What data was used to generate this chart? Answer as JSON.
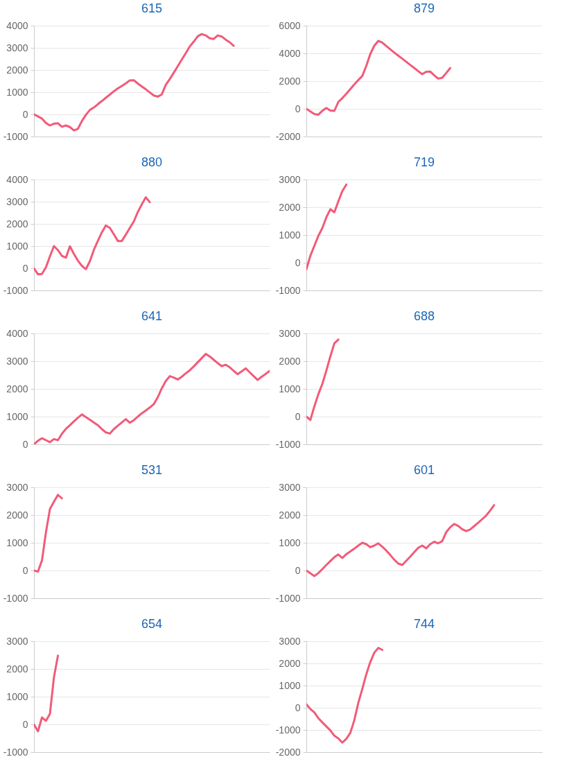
{
  "chart_data": [
    {
      "type": "line",
      "title": "615",
      "color": "#f25a78",
      "grid": "y",
      "tick_labels": "y",
      "ylim": [
        -1000,
        4000
      ],
      "yticks": [
        -1000,
        0,
        1000,
        2000,
        3000,
        4000
      ],
      "categories": [
        null,
        null,
        null,
        null,
        null,
        null,
        null,
        null,
        null,
        null,
        null,
        null,
        null,
        null,
        null,
        null,
        null,
        null,
        null,
        null,
        null,
        null,
        null,
        null,
        null,
        null,
        null,
        null,
        null,
        null,
        null,
        null,
        null,
        null,
        null,
        null,
        null,
        null,
        null,
        null,
        null,
        null,
        null,
        null,
        null,
        null,
        null,
        null,
        null,
        null,
        null,
        null,
        null,
        null,
        null,
        null,
        null,
        null,
        null,
        null
      ],
      "values": [
        0,
        -90,
        -190,
        -390,
        -500,
        -420,
        -400,
        -560,
        -500,
        -570,
        -720,
        -650,
        -300,
        -20,
        200,
        310,
        460,
        600,
        750,
        890,
        1040,
        1170,
        1280,
        1400,
        1530,
        1540,
        1390,
        1260,
        1130,
        990,
        850,
        800,
        900,
        1330,
        1590,
        1880,
        2170,
        2470,
        2760,
        3060,
        3280,
        3520,
        3620,
        3560,
        3430,
        3400,
        3560,
        3510,
        3370,
        3250,
        3090,
        null,
        null,
        null,
        null,
        null,
        null,
        null,
        null,
        null
      ]
    },
    {
      "type": "line",
      "title": "879",
      "color": "#f25a78",
      "grid": "y",
      "tick_labels": "y",
      "ylim": [
        -2000,
        6000
      ],
      "yticks": [
        -2000,
        0,
        2000,
        4000,
        6000
      ],
      "categories": [
        null,
        null,
        null,
        null,
        null,
        null,
        null,
        null,
        null,
        null,
        null,
        null,
        null,
        null,
        null,
        null,
        null,
        null,
        null,
        null,
        null,
        null,
        null,
        null,
        null,
        null,
        null,
        null,
        null,
        null,
        null,
        null,
        null,
        null,
        null,
        null,
        null,
        null,
        null,
        null,
        null,
        null,
        null,
        null,
        null,
        null,
        null,
        null,
        null,
        null,
        null,
        null,
        null,
        null,
        null,
        null,
        null,
        null,
        null,
        null
      ],
      "values": [
        0,
        -190,
        -380,
        -420,
        -140,
        60,
        -130,
        -150,
        500,
        770,
        1090,
        1420,
        1760,
        2080,
        2370,
        3100,
        3950,
        4550,
        4900,
        4780,
        4530,
        4290,
        4060,
        3840,
        3620,
        3390,
        3170,
        2950,
        2720,
        2500,
        2680,
        2690,
        2420,
        2180,
        2240,
        2580,
        2940,
        null,
        null,
        null,
        null,
        null,
        null,
        null,
        null,
        null,
        null,
        null,
        null,
        null,
        null,
        null,
        null,
        null,
        null,
        null,
        null,
        null,
        null,
        null
      ]
    },
    {
      "type": "line",
      "title": "880",
      "color": "#f25a78",
      "grid": "y",
      "tick_labels": "y",
      "ylim": [
        -1000,
        4000
      ],
      "yticks": [
        -1000,
        0,
        1000,
        2000,
        3000,
        4000
      ],
      "categories": [
        null,
        null,
        null,
        null,
        null,
        null,
        null,
        null,
        null,
        null,
        null,
        null,
        null,
        null,
        null,
        null,
        null,
        null,
        null,
        null,
        null,
        null,
        null,
        null,
        null,
        null,
        null,
        null,
        null,
        null,
        null,
        null,
        null,
        null,
        null,
        null,
        null,
        null,
        null,
        null,
        null,
        null,
        null,
        null,
        null,
        null,
        null,
        null,
        null,
        null,
        null,
        null,
        null,
        null,
        null,
        null,
        null,
        null,
        null,
        null
      ],
      "values": [
        0,
        -270,
        -260,
        50,
        540,
        1000,
        820,
        560,
        480,
        990,
        650,
        340,
        110,
        -40,
        320,
        830,
        1240,
        1620,
        1930,
        1820,
        1530,
        1230,
        1230,
        1520,
        1820,
        2110,
        2540,
        2880,
        3200,
        2980,
        null,
        null,
        null,
        null,
        null,
        null,
        null,
        null,
        null,
        null,
        null,
        null,
        null,
        null,
        null,
        null,
        null,
        null,
        null,
        null,
        null,
        null,
        null,
        null,
        null,
        null,
        null,
        null,
        null,
        null
      ]
    },
    {
      "type": "line",
      "title": "719",
      "color": "#f25a78",
      "grid": "y",
      "tick_labels": "y",
      "ylim": [
        -1000,
        3000
      ],
      "yticks": [
        -1000,
        0,
        1000,
        2000,
        3000
      ],
      "categories": [
        null,
        null,
        null,
        null,
        null,
        null,
        null,
        null,
        null,
        null,
        null,
        null,
        null,
        null,
        null,
        null,
        null,
        null,
        null,
        null,
        null,
        null,
        null,
        null,
        null,
        null,
        null,
        null,
        null,
        null,
        null,
        null,
        null,
        null,
        null,
        null,
        null,
        null,
        null,
        null,
        null,
        null,
        null,
        null,
        null,
        null,
        null,
        null,
        null,
        null,
        null,
        null,
        null,
        null,
        null,
        null,
        null,
        null,
        null,
        null
      ],
      "values": [
        -240,
        250,
        610,
        970,
        1250,
        1640,
        1930,
        1820,
        2210,
        2580,
        2820,
        null,
        null,
        null,
        null,
        null,
        null,
        null,
        null,
        null,
        null,
        null,
        null,
        null,
        null,
        null,
        null,
        null,
        null,
        null,
        null,
        null,
        null,
        null,
        null,
        null,
        null,
        null,
        null,
        null,
        null,
        null,
        null,
        null,
        null,
        null,
        null,
        null,
        null,
        null,
        null,
        null,
        null,
        null,
        null,
        null,
        null,
        null,
        null,
        null
      ]
    },
    {
      "type": "line",
      "title": "641",
      "color": "#f25a78",
      "grid": "y",
      "tick_labels": "y",
      "ylim": [
        0,
        4000
      ],
      "yticks": [
        0,
        1000,
        2000,
        3000,
        4000
      ],
      "categories": [
        null,
        null,
        null,
        null,
        null,
        null,
        null,
        null,
        null,
        null,
        null,
        null,
        null,
        null,
        null,
        null,
        null,
        null,
        null,
        null,
        null,
        null,
        null,
        null,
        null,
        null,
        null,
        null,
        null,
        null,
        null,
        null,
        null,
        null,
        null,
        null,
        null,
        null,
        null,
        null,
        null,
        null,
        null,
        null,
        null,
        null,
        null,
        null,
        null,
        null,
        null,
        null,
        null,
        null,
        null,
        null,
        null,
        null,
        null,
        null
      ],
      "values": [
        0,
        130,
        220,
        150,
        80,
        190,
        150,
        380,
        560,
        690,
        830,
        960,
        1080,
        980,
        890,
        790,
        690,
        550,
        430,
        390,
        550,
        670,
        790,
        910,
        780,
        870,
        1000,
        1120,
        1220,
        1330,
        1450,
        1700,
        2020,
        2280,
        2460,
        2410,
        2340,
        2440,
        2560,
        2670,
        2810,
        2960,
        3110,
        3260,
        3170,
        3050,
        2930,
        2820,
        2870,
        2780,
        2650,
        2530,
        2630,
        2740,
        2600,
        2460,
        2320,
        2440,
        2540,
        2650
      ]
    },
    {
      "type": "line",
      "title": "688",
      "color": "#f25a78",
      "grid": "y",
      "tick_labels": "y",
      "ylim": [
        -1000,
        3000
      ],
      "yticks": [
        -1000,
        0,
        1000,
        2000,
        3000
      ],
      "categories": [
        null,
        null,
        null,
        null,
        null,
        null,
        null,
        null,
        null,
        null,
        null,
        null,
        null,
        null,
        null,
        null,
        null,
        null,
        null,
        null,
        null,
        null,
        null,
        null,
        null,
        null,
        null,
        null,
        null,
        null,
        null,
        null,
        null,
        null,
        null,
        null,
        null,
        null,
        null,
        null,
        null,
        null,
        null,
        null,
        null,
        null,
        null,
        null,
        null,
        null,
        null,
        null,
        null,
        null,
        null,
        null,
        null,
        null,
        null,
        null
      ],
      "values": [
        0,
        -120,
        370,
        810,
        1180,
        1660,
        2170,
        2640,
        2780,
        null,
        null,
        null,
        null,
        null,
        null,
        null,
        null,
        null,
        null,
        null,
        null,
        null,
        null,
        null,
        null,
        null,
        null,
        null,
        null,
        null,
        null,
        null,
        null,
        null,
        null,
        null,
        null,
        null,
        null,
        null,
        null,
        null,
        null,
        null,
        null,
        null,
        null,
        null,
        null,
        null,
        null,
        null,
        null,
        null,
        null,
        null,
        null,
        null,
        null,
        null
      ]
    },
    {
      "type": "line",
      "title": "531",
      "color": "#f25a78",
      "grid": "y",
      "tick_labels": "y",
      "ylim": [
        -1000,
        3000
      ],
      "yticks": [
        -1000,
        0,
        1000,
        2000,
        3000
      ],
      "categories": [
        null,
        null,
        null,
        null,
        null,
        null,
        null,
        null,
        null,
        null,
        null,
        null,
        null,
        null,
        null,
        null,
        null,
        null,
        null,
        null,
        null,
        null,
        null,
        null,
        null,
        null,
        null,
        null,
        null,
        null,
        null,
        null,
        null,
        null,
        null,
        null,
        null,
        null,
        null,
        null,
        null,
        null,
        null,
        null,
        null,
        null,
        null,
        null,
        null,
        null,
        null,
        null,
        null,
        null,
        null,
        null,
        null,
        null,
        null,
        null
      ],
      "values": [
        0,
        -40,
        360,
        1380,
        2220,
        2480,
        2730,
        2600,
        null,
        null,
        null,
        null,
        null,
        null,
        null,
        null,
        null,
        null,
        null,
        null,
        null,
        null,
        null,
        null,
        null,
        null,
        null,
        null,
        null,
        null,
        null,
        null,
        null,
        null,
        null,
        null,
        null,
        null,
        null,
        null,
        null,
        null,
        null,
        null,
        null,
        null,
        null,
        null,
        null,
        null,
        null,
        null,
        null,
        null,
        null,
        null,
        null,
        null,
        null,
        null
      ]
    },
    {
      "type": "line",
      "title": "601",
      "color": "#f25a78",
      "grid": "y",
      "tick_labels": "y",
      "ylim": [
        -1000,
        3000
      ],
      "yticks": [
        -1000,
        0,
        1000,
        2000,
        3000
      ],
      "categories": [
        null,
        null,
        null,
        null,
        null,
        null,
        null,
        null,
        null,
        null,
        null,
        null,
        null,
        null,
        null,
        null,
        null,
        null,
        null,
        null,
        null,
        null,
        null,
        null,
        null,
        null,
        null,
        null,
        null,
        null,
        null,
        null,
        null,
        null,
        null,
        null,
        null,
        null,
        null,
        null,
        null,
        null,
        null,
        null,
        null,
        null,
        null,
        null,
        null,
        null,
        null,
        null,
        null,
        null,
        null,
        null,
        null,
        null,
        null,
        null
      ],
      "values": [
        0,
        -100,
        -200,
        -90,
        50,
        200,
        340,
        480,
        580,
        450,
        590,
        690,
        790,
        900,
        1000,
        950,
        840,
        900,
        980,
        860,
        720,
        560,
        390,
        250,
        200,
        350,
        500,
        660,
        820,
        900,
        800,
        950,
        1040,
        980,
        1060,
        1380,
        1560,
        1680,
        1610,
        1490,
        1420,
        1480,
        1600,
        1720,
        1850,
        1980,
        2160,
        2360,
        null,
        null,
        null,
        null,
        null,
        null,
        null,
        null,
        null,
        null,
        null,
        null
      ]
    },
    {
      "type": "line",
      "title": "654",
      "color": "#f25a78",
      "grid": "y",
      "tick_labels": "y",
      "ylim": [
        -1000,
        3000
      ],
      "yticks": [
        -1000,
        0,
        1000,
        2000,
        3000
      ],
      "categories": [
        null,
        null,
        null,
        null,
        null,
        null,
        null,
        null,
        null,
        null,
        null,
        null,
        null,
        null,
        null,
        null,
        null,
        null,
        null,
        null,
        null,
        null,
        null,
        null,
        null,
        null,
        null,
        null,
        null,
        null,
        null,
        null,
        null,
        null,
        null,
        null,
        null,
        null,
        null,
        null,
        null,
        null,
        null,
        null,
        null,
        null,
        null,
        null,
        null,
        null,
        null,
        null,
        null,
        null,
        null,
        null,
        null,
        null,
        null,
        null
      ],
      "values": [
        0,
        -250,
        250,
        130,
        380,
        1700,
        2480,
        null,
        null,
        null,
        null,
        null,
        null,
        null,
        null,
        null,
        null,
        null,
        null,
        null,
        null,
        null,
        null,
        null,
        null,
        null,
        null,
        null,
        null,
        null,
        null,
        null,
        null,
        null,
        null,
        null,
        null,
        null,
        null,
        null,
        null,
        null,
        null,
        null,
        null,
        null,
        null,
        null,
        null,
        null,
        null,
        null,
        null,
        null,
        null,
        null,
        null,
        null,
        null,
        null
      ]
    },
    {
      "type": "line",
      "title": "744",
      "color": "#f25a78",
      "grid": "y",
      "tick_labels": "y",
      "ylim": [
        -2000,
        3000
      ],
      "yticks": [
        -2000,
        -1000,
        0,
        1000,
        2000,
        3000
      ],
      "categories": [
        null,
        null,
        null,
        null,
        null,
        null,
        null,
        null,
        null,
        null,
        null,
        null,
        null,
        null,
        null,
        null,
        null,
        null,
        null,
        null,
        null,
        null,
        null,
        null,
        null,
        null,
        null,
        null,
        null,
        null,
        null,
        null,
        null,
        null,
        null,
        null,
        null,
        null,
        null,
        null,
        null,
        null,
        null,
        null,
        null,
        null,
        null,
        null,
        null,
        null,
        null,
        null,
        null,
        null,
        null,
        null,
        null,
        null,
        null,
        null
      ],
      "values": [
        160,
        -60,
        -210,
        -470,
        -660,
        -840,
        -1020,
        -1260,
        -1380,
        -1570,
        -1400,
        -1130,
        -560,
        220,
        850,
        1510,
        2060,
        2480,
        2700,
        2610,
        null,
        null,
        null,
        null,
        null,
        null,
        null,
        null,
        null,
        null,
        null,
        null,
        null,
        null,
        null,
        null,
        null,
        null,
        null,
        null,
        null,
        null,
        null,
        null,
        null,
        null,
        null,
        null,
        null,
        null,
        null,
        null,
        null,
        null,
        null,
        null,
        null,
        null,
        null,
        null
      ]
    }
  ]
}
